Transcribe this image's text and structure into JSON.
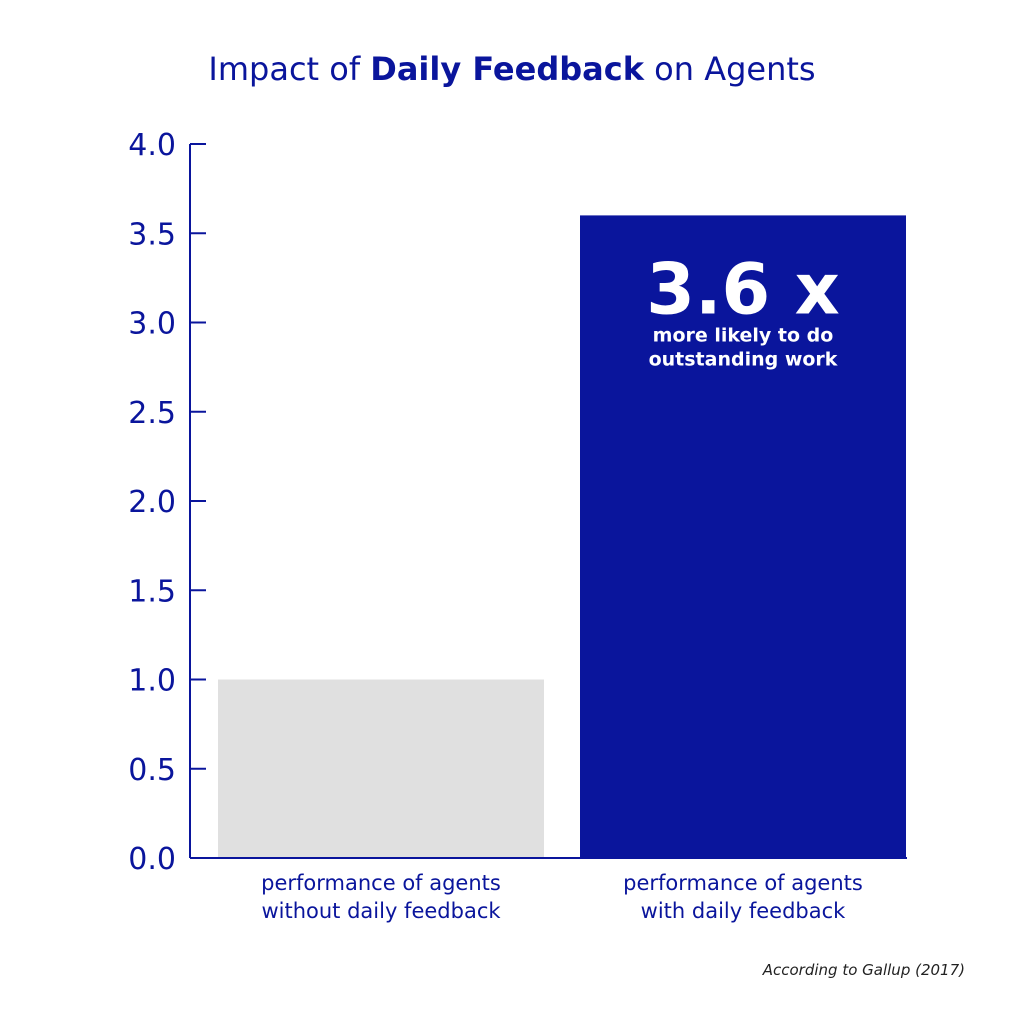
{
  "colors": {
    "primary": "#0a159c",
    "bar_without": "#e0e0e0",
    "bar_with": "#0a159c",
    "annotation_text": "#ffffff",
    "source_text": "#222222",
    "background": "#ffffff"
  },
  "title": {
    "prefix": "Impact of ",
    "emphasis": "Daily Feedback",
    "suffix": " on Agents"
  },
  "source": "According to Gallup (2017)",
  "annotation": {
    "big": "3.6 x",
    "line1": "more likely to do",
    "line2": "outstanding work"
  },
  "chart_data": {
    "type": "bar",
    "title": "Impact of Daily Feedback on Agents",
    "xlabel": "",
    "ylabel": "",
    "ylim": [
      0,
      4.0
    ],
    "yticks": [
      "0.0",
      "0.5",
      "1.0",
      "1.5",
      "2.0",
      "2.5",
      "3.0",
      "3.5",
      "4.0"
    ],
    "categories": [
      [
        "performance of agents",
        "without daily feedback"
      ],
      [
        "performance of agents",
        "with daily feedback"
      ]
    ],
    "values": [
      1.0,
      3.6
    ],
    "grid": false,
    "legend": "none"
  }
}
